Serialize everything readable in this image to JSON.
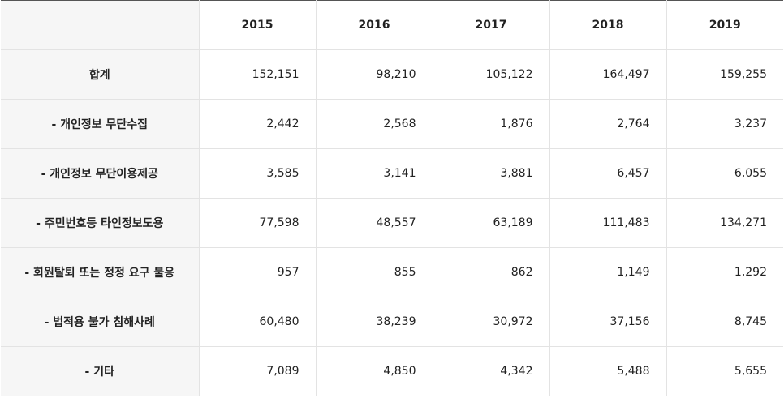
{
  "table": {
    "years": [
      "2015",
      "2016",
      "2017",
      "2018",
      "2019"
    ],
    "rows": [
      {
        "label": "합계",
        "values": [
          "152,151",
          "98,210",
          "105,122",
          "164,497",
          "159,255"
        ]
      },
      {
        "label": "- 개인정보 무단수집",
        "values": [
          "2,442",
          "2,568",
          "1,876",
          "2,764",
          "3,237"
        ]
      },
      {
        "label": "- 개인정보 무단이용제공",
        "values": [
          "3,585",
          "3,141",
          "3,881",
          "6,457",
          "6,055"
        ]
      },
      {
        "label": "- 주민번호등 타인정보도용",
        "values": [
          "77,598",
          "48,557",
          "63,189",
          "111,483",
          "134,271"
        ]
      },
      {
        "label": "- 회원탈퇴 또는 정정 요구 불응",
        "values": [
          "957",
          "855",
          "862",
          "1,149",
          "1,292"
        ]
      },
      {
        "label": "- 법적용 불가 침해사례",
        "values": [
          "60,480",
          "38,239",
          "30,972",
          "37,156",
          "8,745"
        ]
      },
      {
        "label": "- 기타",
        "values": [
          "7,089",
          "4,850",
          "4,342",
          "5,488",
          "5,655"
        ]
      }
    ]
  }
}
